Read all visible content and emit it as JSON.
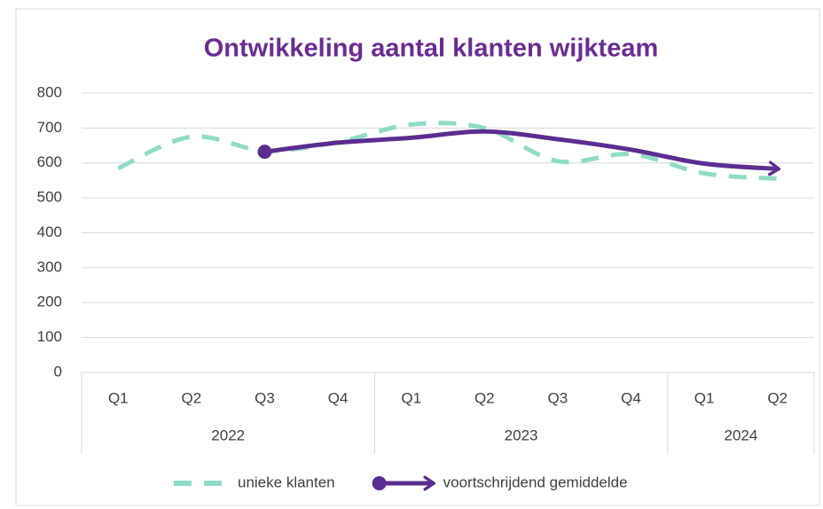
{
  "chart_data": {
    "type": "line",
    "title": "Ontwikkeling aantal klanten wijkteam",
    "groups": [
      {
        "label": "2022",
        "categories": [
          "Q1",
          "Q2",
          "Q3",
          "Q4"
        ]
      },
      {
        "label": "2023",
        "categories": [
          "Q1",
          "Q2",
          "Q3",
          "Q4"
        ]
      },
      {
        "label": "2024",
        "categories": [
          "Q1",
          "Q2"
        ]
      }
    ],
    "series": [
      {
        "name": "unieke klanten",
        "color": "#8fdcc6",
        "style": "dashed",
        "values": [
          585,
          675,
          635,
          660,
          710,
          700,
          605,
          625,
          570,
          555
        ]
      },
      {
        "name": "voortschrijdend gemiddelde",
        "color": "#5c2d91",
        "style": "arrow",
        "values": [
          null,
          null,
          632,
          658,
          672,
          690,
          668,
          638,
          598,
          583
        ]
      }
    ],
    "ylim": [
      0,
      800
    ],
    "yticks": [
      0,
      100,
      200,
      300,
      400,
      500,
      600,
      700,
      800
    ],
    "grid": true,
    "legend": "bottom"
  }
}
